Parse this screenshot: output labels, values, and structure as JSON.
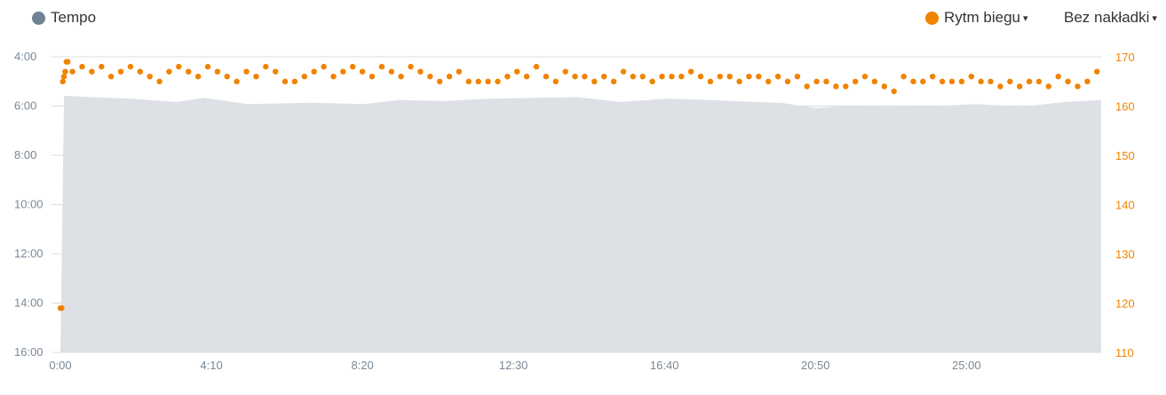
{
  "legend": {
    "left": {
      "label": "Tempo",
      "color": "#6f8192"
    },
    "right": {
      "label": "Rytm biegu",
      "color": "#f08300",
      "caret": "▾"
    },
    "overlay": {
      "label": "Bez nakładki",
      "caret": "▾"
    }
  },
  "chart_data": {
    "type": "area+scatter",
    "grid": true,
    "x_axis": {
      "range_s": [
        0,
        1723
      ],
      "ticks": [
        0,
        250,
        500,
        750,
        1000,
        1250,
        1500
      ],
      "tick_labels": [
        "0:00",
        "4:10",
        "8:20",
        "12:30",
        "16:40",
        "20:50",
        "25:00"
      ]
    },
    "y_left": {
      "name": "Tempo",
      "range": [
        "4:00",
        "16:00"
      ],
      "tick_labels": [
        "4:00",
        "6:00",
        "8:00",
        "10:00",
        "12:00",
        "14:00",
        "16:00"
      ],
      "inverted": true
    },
    "y_right": {
      "name": "Rytm biegu",
      "range": [
        110,
        170
      ],
      "tick_labels": [
        "170",
        "160",
        "150",
        "140",
        "130",
        "120",
        "110"
      ]
    },
    "pace": {
      "x": [
        0,
        6,
        47,
        120,
        193,
        237,
        311,
        414,
        502,
        561,
        634,
        708,
        781,
        855,
        928,
        1002,
        1076,
        1149,
        1193,
        1252,
        1296,
        1370,
        1443,
        1517,
        1590,
        1664,
        1723
      ],
      "y": [
        "16:00",
        "5:35",
        "5:38",
        "5:42",
        "5:50",
        "5:40",
        "5:55",
        "5:52",
        "5:55",
        "5:45",
        "5:48",
        "5:42",
        "5:40",
        "5:38",
        "5:50",
        "5:42",
        "5:45",
        "5:50",
        "5:52",
        "6:05",
        "6:00",
        "5:58",
        "6:00",
        "5:55",
        "6:02",
        "5:50",
        "5:45"
      ]
    },
    "cadence": {
      "x": [
        0,
        2,
        4,
        6,
        8,
        10,
        12,
        20,
        36,
        52,
        68,
        84,
        100,
        116,
        132,
        148,
        164,
        180,
        196,
        212,
        228,
        244,
        260,
        276,
        292,
        308,
        324,
        340,
        356,
        372,
        388,
        404,
        420,
        436,
        452,
        468,
        484,
        500,
        516,
        532,
        548,
        564,
        580,
        596,
        612,
        628,
        644,
        660,
        676,
        692,
        708,
        724,
        740,
        756,
        772,
        788,
        804,
        820,
        836,
        852,
        868,
        884,
        900,
        916,
        932,
        948,
        964,
        980,
        996,
        1012,
        1028,
        1044,
        1060,
        1076,
        1092,
        1108,
        1124,
        1140,
        1156,
        1172,
        1188,
        1204,
        1220,
        1236,
        1252,
        1268,
        1284,
        1300,
        1316,
        1332,
        1348,
        1364,
        1380,
        1396,
        1412,
        1428,
        1444,
        1460,
        1476,
        1492,
        1508,
        1524,
        1540,
        1556,
        1572,
        1588,
        1604,
        1620,
        1636,
        1652,
        1668,
        1684,
        1700,
        1716
      ],
      "y": [
        119,
        119,
        165,
        166,
        167,
        169,
        169,
        167,
        168,
        167,
        168,
        166,
        167,
        168,
        167,
        166,
        165,
        167,
        168,
        167,
        166,
        168,
        167,
        166,
        165,
        167,
        166,
        168,
        167,
        165,
        165,
        166,
        167,
        168,
        166,
        167,
        168,
        167,
        166,
        168,
        167,
        166,
        168,
        167,
        166,
        165,
        166,
        167,
        165,
        165,
        165,
        165,
        166,
        167,
        166,
        168,
        166,
        165,
        167,
        166,
        166,
        165,
        166,
        165,
        167,
        166,
        166,
        165,
        166,
        166,
        166,
        167,
        166,
        165,
        166,
        166,
        165,
        166,
        166,
        165,
        166,
        165,
        166,
        164,
        165,
        165,
        164,
        164,
        165,
        166,
        165,
        164,
        163,
        166,
        165,
        165,
        166,
        165,
        165,
        165,
        166,
        165,
        165,
        164,
        165,
        164,
        165,
        165,
        164,
        166,
        165,
        164,
        165,
        167
      ]
    }
  }
}
